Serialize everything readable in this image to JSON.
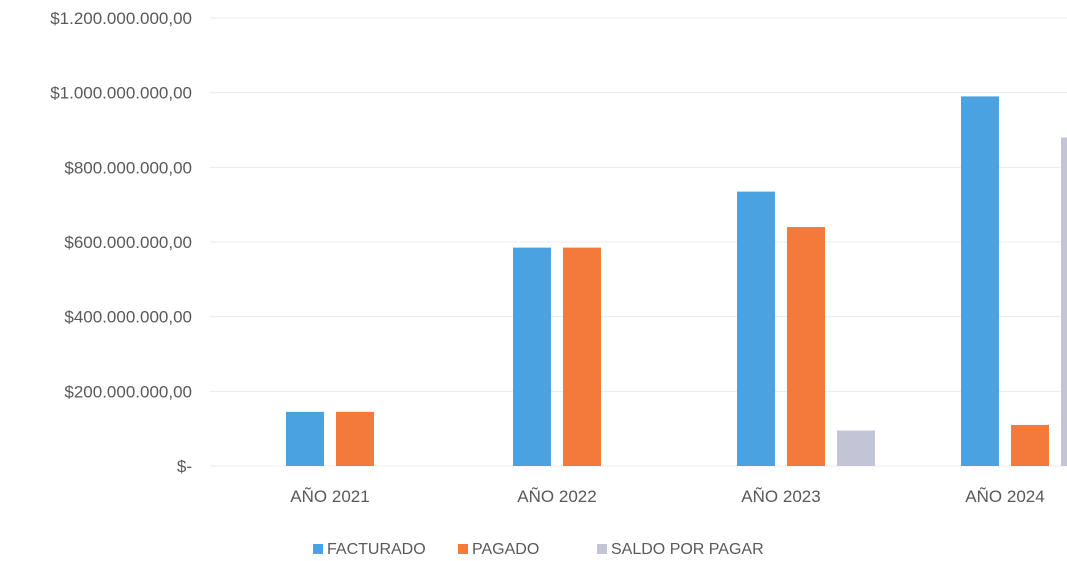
{
  "chart_data": {
    "type": "bar",
    "title": "",
    "xlabel": "",
    "ylabel": "",
    "categories": [
      "AÑO 2021",
      "AÑO 2022",
      "AÑO 2023",
      "AÑO 2024"
    ],
    "series": [
      {
        "name": "FACTURADO",
        "color": "#4aa3e0",
        "values": [
          145000000,
          585000000,
          735000000,
          990000000
        ]
      },
      {
        "name": "PAGADO",
        "color": "#f47a3c",
        "values": [
          145000000,
          585000000,
          640000000,
          110000000
        ]
      },
      {
        "name": "SALDO POR PAGAR",
        "color": "#c3c4d6",
        "values": [
          0,
          0,
          95000000,
          880000000
        ]
      }
    ],
    "ylim": [
      0,
      1200000000
    ],
    "yticks": [
      0,
      200000000,
      400000000,
      600000000,
      800000000,
      1000000000,
      1200000000
    ],
    "ytick_labels": [
      "$-",
      "$200.000.000,00",
      "$400.000.000,00",
      "$600.000.000,00",
      "$800.000.000,00",
      "$1.000.000.000,00",
      "$1.200.000.000,00"
    ],
    "grid": true,
    "legend_position": "bottom"
  }
}
